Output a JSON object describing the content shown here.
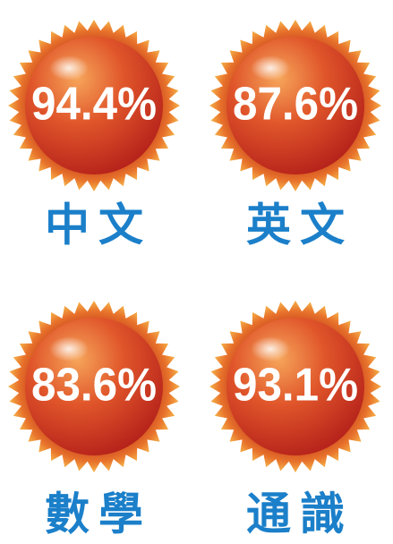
{
  "items": [
    {
      "value": "94.4%",
      "subject": "中文"
    },
    {
      "value": "87.6%",
      "subject": "英文"
    },
    {
      "value": "83.6%",
      "subject": "數學"
    },
    {
      "value": "93.1%",
      "subject": "通識"
    }
  ]
}
